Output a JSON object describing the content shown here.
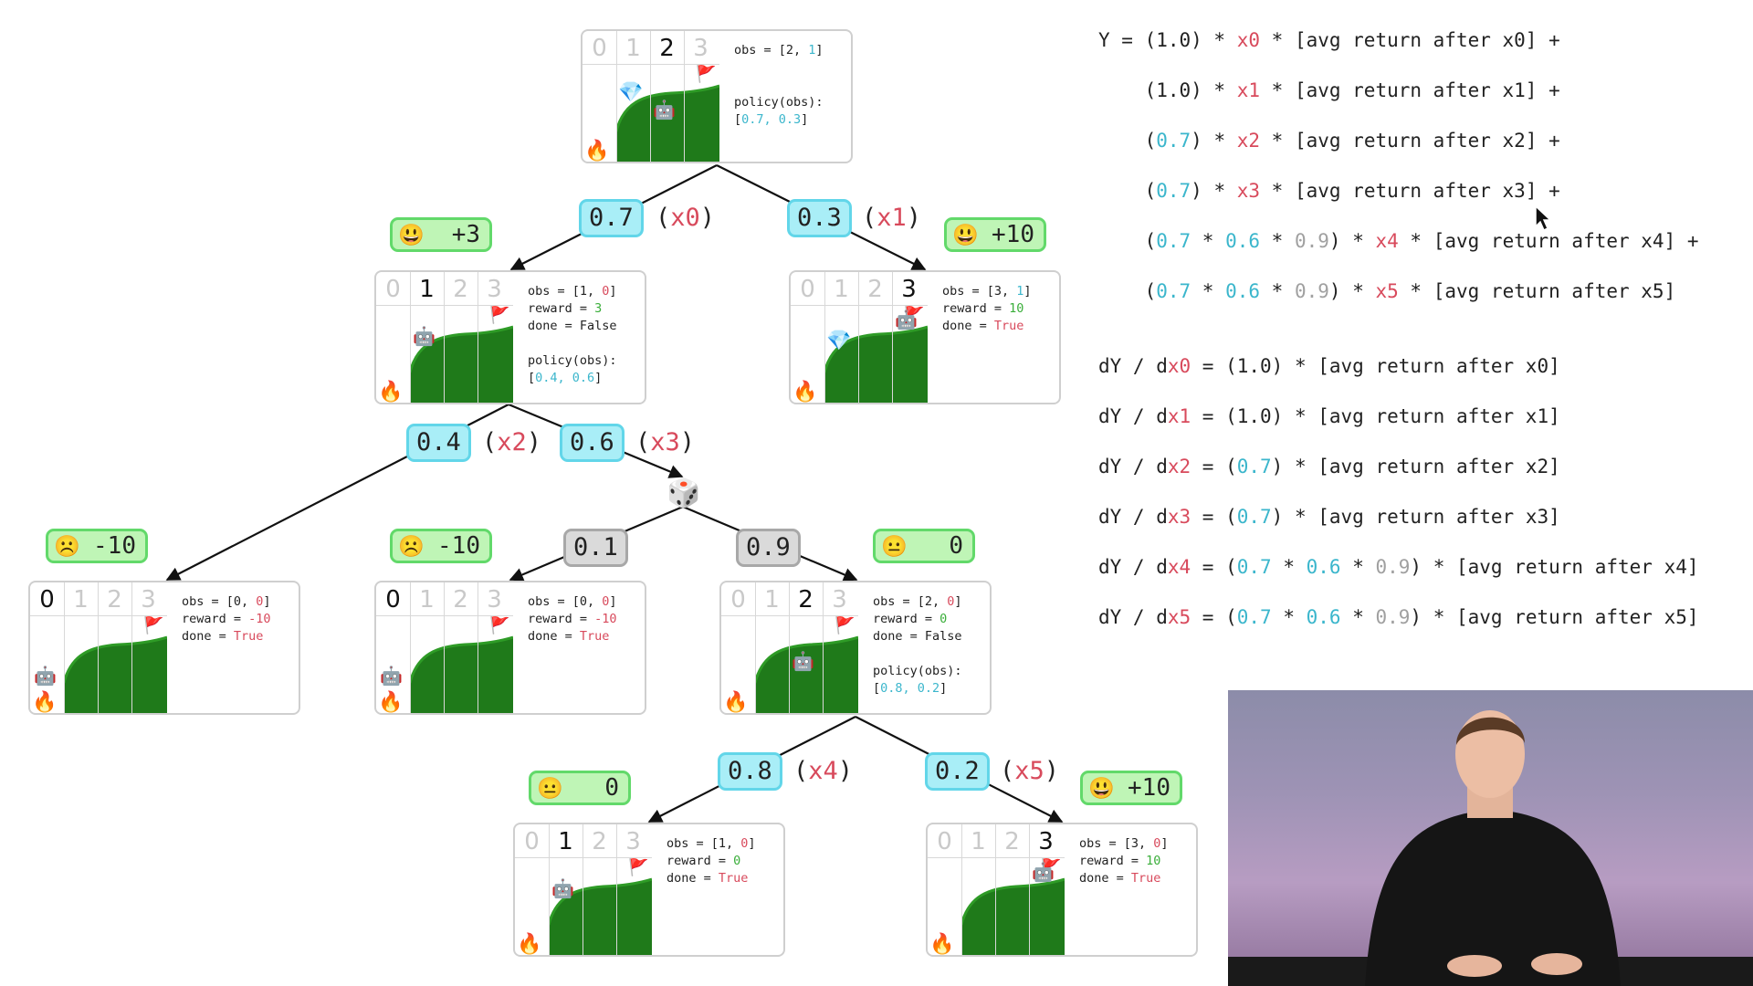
{
  "states": [
    {
      "id": "s0",
      "cols": [
        "0",
        "1",
        "2",
        "3"
      ],
      "active_col": 2,
      "robot": "robot",
      "gem": "gem",
      "info": [
        {
          "segs": [
            {
              "t": "obs = [2, "
            },
            {
              "t": "1",
              "c": "blue"
            },
            {
              "t": "]"
            }
          ]
        },
        {
          "segs": [
            {
              "t": ""
            }
          ]
        },
        {
          "segs": [
            {
              "t": ""
            }
          ]
        },
        {
          "segs": [
            {
              "t": "policy(obs):"
            }
          ]
        },
        {
          "segs": [
            {
              "t": "["
            },
            {
              "t": "0.7, 0.3",
              "c": "blue"
            },
            {
              "t": "]"
            }
          ]
        }
      ]
    },
    {
      "id": "s1",
      "cols": [
        "0",
        "1",
        "2",
        "3"
      ],
      "active_col": 1,
      "info": [
        {
          "segs": [
            {
              "t": "obs = [1, "
            },
            {
              "t": "0",
              "c": "red"
            },
            {
              "t": "]"
            }
          ]
        },
        {
          "segs": [
            {
              "t": "reward = "
            },
            {
              "t": "3",
              "c": "green"
            }
          ]
        },
        {
          "segs": [
            {
              "t": "done = False"
            }
          ]
        },
        {
          "segs": [
            {
              "t": ""
            }
          ]
        },
        {
          "segs": [
            {
              "t": "policy(obs):"
            }
          ]
        },
        {
          "segs": [
            {
              "t": "["
            },
            {
              "t": "0.4, 0.6",
              "c": "blue"
            },
            {
              "t": "]"
            }
          ]
        }
      ]
    },
    {
      "id": "s2",
      "cols": [
        "0",
        "1",
        "2",
        "3"
      ],
      "active_col": 3,
      "info": [
        {
          "segs": [
            {
              "t": "obs = [3, "
            },
            {
              "t": "1",
              "c": "blue"
            },
            {
              "t": "]"
            }
          ]
        },
        {
          "segs": [
            {
              "t": "reward = "
            },
            {
              "t": "10",
              "c": "green"
            }
          ]
        },
        {
          "segs": [
            {
              "t": "done = "
            },
            {
              "t": "True",
              "c": "red"
            }
          ]
        }
      ]
    },
    {
      "id": "s3",
      "cols": [
        "0",
        "1",
        "2",
        "3"
      ],
      "active_col": 0,
      "info": [
        {
          "segs": [
            {
              "t": "obs = [0, "
            },
            {
              "t": "0",
              "c": "red"
            },
            {
              "t": "]"
            }
          ]
        },
        {
          "segs": [
            {
              "t": "reward = "
            },
            {
              "t": "-10",
              "c": "red"
            }
          ]
        },
        {
          "segs": [
            {
              "t": "done = "
            },
            {
              "t": "True",
              "c": "red"
            }
          ]
        }
      ]
    },
    {
      "id": "s4",
      "cols": [
        "0",
        "1",
        "2",
        "3"
      ],
      "active_col": 0,
      "info": [
        {
          "segs": [
            {
              "t": "obs = [0, "
            },
            {
              "t": "0",
              "c": "red"
            },
            {
              "t": "]"
            }
          ]
        },
        {
          "segs": [
            {
              "t": "reward = "
            },
            {
              "t": "-10",
              "c": "red"
            }
          ]
        },
        {
          "segs": [
            {
              "t": "done = "
            },
            {
              "t": "True",
              "c": "red"
            }
          ]
        }
      ]
    },
    {
      "id": "s5",
      "cols": [
        "0",
        "1",
        "2",
        "3"
      ],
      "active_col": 2,
      "info": [
        {
          "segs": [
            {
              "t": "obs = [2, "
            },
            {
              "t": "0",
              "c": "red"
            },
            {
              "t": "]"
            }
          ]
        },
        {
          "segs": [
            {
              "t": "reward = "
            },
            {
              "t": "0",
              "c": "green"
            }
          ]
        },
        {
          "segs": [
            {
              "t": "done = False"
            }
          ]
        },
        {
          "segs": [
            {
              "t": ""
            }
          ]
        },
        {
          "segs": [
            {
              "t": "policy(obs):"
            }
          ]
        },
        {
          "segs": [
            {
              "t": "["
            },
            {
              "t": "0.8, 0.2",
              "c": "blue"
            },
            {
              "t": "]"
            }
          ]
        }
      ]
    },
    {
      "id": "s6",
      "cols": [
        "0",
        "1",
        "2",
        "3"
      ],
      "active_col": 1,
      "info": [
        {
          "segs": [
            {
              "t": "obs = [1, "
            },
            {
              "t": "0",
              "c": "red"
            },
            {
              "t": "]"
            }
          ]
        },
        {
          "segs": [
            {
              "t": "reward = "
            },
            {
              "t": "0",
              "c": "green"
            }
          ]
        },
        {
          "segs": [
            {
              "t": "done = "
            },
            {
              "t": "True",
              "c": "red"
            }
          ]
        }
      ]
    },
    {
      "id": "s7",
      "cols": [
        "0",
        "1",
        "2",
        "3"
      ],
      "active_col": 3,
      "info": [
        {
          "segs": [
            {
              "t": "obs = [3, "
            },
            {
              "t": "0",
              "c": "red"
            },
            {
              "t": "]"
            }
          ]
        },
        {
          "segs": [
            {
              "t": "reward = "
            },
            {
              "t": "10",
              "c": "green"
            }
          ]
        },
        {
          "segs": [
            {
              "t": "done = "
            },
            {
              "t": "True",
              "c": "red"
            }
          ]
        }
      ]
    }
  ],
  "edges": [
    {
      "p": "0.7",
      "v": "x0"
    },
    {
      "p": "0.3",
      "v": "x1"
    },
    {
      "p": "0.4",
      "v": "x2"
    },
    {
      "p": "0.6",
      "v": "x3"
    },
    {
      "p": "0.1",
      "v": ""
    },
    {
      "p": "0.9",
      "v": ""
    },
    {
      "p": "0.8",
      "v": "x4"
    },
    {
      "p": "0.2",
      "v": "x5"
    }
  ],
  "rewards": [
    {
      "face": "😃",
      "value": "+3"
    },
    {
      "face": "😃",
      "value": "+10"
    },
    {
      "face": "☹️",
      "value": "-10"
    },
    {
      "face": "☹️",
      "value": "-10"
    },
    {
      "face": "😐",
      "value": "0"
    },
    {
      "face": "😐",
      "value": "0"
    },
    {
      "face": "😃",
      "value": "+10"
    }
  ],
  "icons": {
    "fire": "🔥",
    "flag": "🚩",
    "gem": "💎",
    "robot": "🤖",
    "dice": "🎲",
    "sad": "☹️",
    "happy": "😃",
    "neutral": "😐"
  },
  "equations": [
    [
      {
        "t": "Y = (1.0) * "
      },
      {
        "t": "x0",
        "c": "red"
      },
      {
        "t": " * [avg return after x0] +"
      }
    ],
    [
      {
        "t": "    (1.0) * "
      },
      {
        "t": "x1",
        "c": "red"
      },
      {
        "t": " * [avg return after x1] +"
      }
    ],
    [
      {
        "t": "    ("
      },
      {
        "t": "0.7",
        "c": "blue"
      },
      {
        "t": ") * "
      },
      {
        "t": "x2",
        "c": "red"
      },
      {
        "t": " * [avg return after x2] +"
      }
    ],
    [
      {
        "t": "    ("
      },
      {
        "t": "0.7",
        "c": "blue"
      },
      {
        "t": ") * "
      },
      {
        "t": "x3",
        "c": "red"
      },
      {
        "t": " * [avg return after x3] +"
      }
    ],
    [
      {
        "t": "    ("
      },
      {
        "t": "0.7",
        "c": "blue"
      },
      {
        "t": " * "
      },
      {
        "t": "0.6",
        "c": "blue"
      },
      {
        "t": " * "
      },
      {
        "t": "0.9",
        "c": "gray"
      },
      {
        "t": ") * "
      },
      {
        "t": "x4",
        "c": "red"
      },
      {
        "t": " * [avg return after x4] +"
      }
    ],
    [
      {
        "t": "    ("
      },
      {
        "t": "0.7",
        "c": "blue"
      },
      {
        "t": " * "
      },
      {
        "t": "0.6",
        "c": "blue"
      },
      {
        "t": " * "
      },
      {
        "t": "0.9",
        "c": "gray"
      },
      {
        "t": ") * "
      },
      {
        "t": "x5",
        "c": "red"
      },
      {
        "t": " * [avg return after x5]"
      }
    ],
    [
      {
        "t": "dY / d"
      },
      {
        "t": "x0",
        "c": "red"
      },
      {
        "t": " = (1.0) * [avg return after x0]"
      }
    ],
    [
      {
        "t": "dY / d"
      },
      {
        "t": "x1",
        "c": "red"
      },
      {
        "t": " = (1.0) * [avg return after x1]"
      }
    ],
    [
      {
        "t": "dY / d"
      },
      {
        "t": "x2",
        "c": "red"
      },
      {
        "t": " = ("
      },
      {
        "t": "0.7",
        "c": "blue"
      },
      {
        "t": ") * [avg return after x2]"
      }
    ],
    [
      {
        "t": "dY / d"
      },
      {
        "t": "x3",
        "c": "red"
      },
      {
        "t": " = ("
      },
      {
        "t": "0.7",
        "c": "blue"
      },
      {
        "t": ") * [avg return after x3]"
      }
    ],
    [
      {
        "t": "dY / d"
      },
      {
        "t": "x4",
        "c": "red"
      },
      {
        "t": " = ("
      },
      {
        "t": "0.7",
        "c": "blue"
      },
      {
        "t": " * "
      },
      {
        "t": "0.6",
        "c": "blue"
      },
      {
        "t": " * "
      },
      {
        "t": "0.9",
        "c": "gray"
      },
      {
        "t": ") * [avg return after x4]"
      }
    ],
    [
      {
        "t": "dY / d"
      },
      {
        "t": "x5",
        "c": "red"
      },
      {
        "t": " = ("
      },
      {
        "t": "0.7",
        "c": "blue"
      },
      {
        "t": " * "
      },
      {
        "t": "0.6",
        "c": "blue"
      },
      {
        "t": " * "
      },
      {
        "t": "0.9",
        "c": "gray"
      },
      {
        "t": ") * [avg return after x5]"
      }
    ]
  ]
}
